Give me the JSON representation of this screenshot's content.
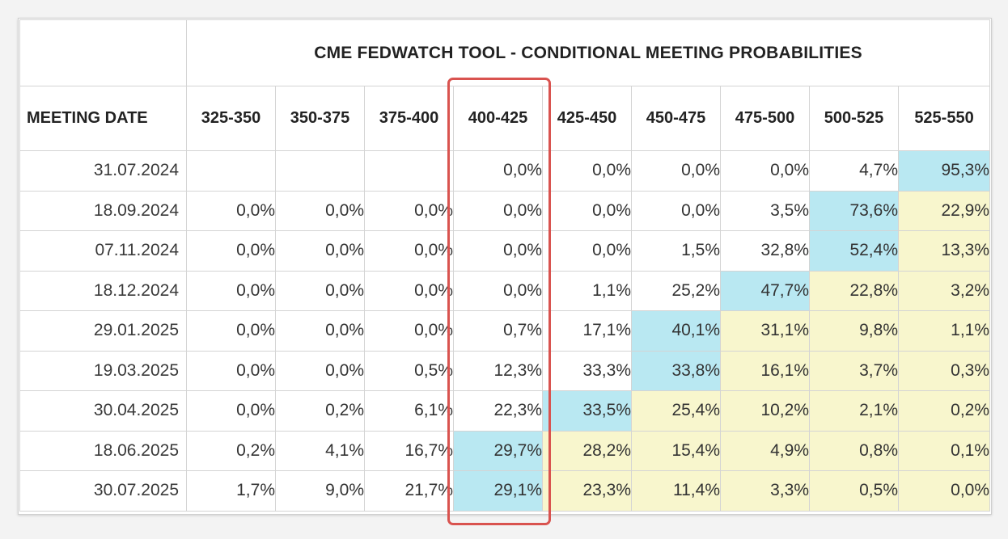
{
  "chart_data": {
    "type": "table",
    "title": "CME FEDWATCH TOOL - CONDITIONAL MEETING PROBABILITIES",
    "row_header_label": "MEETING DATE",
    "columns": [
      "325-350",
      "350-375",
      "375-400",
      "400-425",
      "425-450",
      "450-475",
      "475-500",
      "500-525",
      "525-550"
    ],
    "highlighted_column": "400-425",
    "colors": {
      "highest": "#b9e8f2",
      "secondary": "#f8f6cd",
      "highlight_border": "#d9534f"
    },
    "rows": [
      {
        "date": "31.07.2024",
        "values": [
          "",
          "",
          "",
          "0,0%",
          "0,0%",
          "0,0%",
          "0,0%",
          "4,7%",
          "95,3%"
        ],
        "shade": [
          "",
          "",
          "",
          "",
          "",
          "",
          "",
          "",
          "hi"
        ]
      },
      {
        "date": "18.09.2024",
        "values": [
          "0,0%",
          "0,0%",
          "0,0%",
          "0,0%",
          "0,0%",
          "0,0%",
          "3,5%",
          "73,6%",
          "22,9%"
        ],
        "shade": [
          "",
          "",
          "",
          "",
          "",
          "",
          "",
          "hi",
          "mid"
        ]
      },
      {
        "date": "07.11.2024",
        "values": [
          "0,0%",
          "0,0%",
          "0,0%",
          "0,0%",
          "0,0%",
          "1,5%",
          "32,8%",
          "52,4%",
          "13,3%"
        ],
        "shade": [
          "",
          "",
          "",
          "",
          "",
          "",
          "",
          "hi",
          "mid"
        ]
      },
      {
        "date": "18.12.2024",
        "values": [
          "0,0%",
          "0,0%",
          "0,0%",
          "0,0%",
          "1,1%",
          "25,2%",
          "47,7%",
          "22,8%",
          "3,2%"
        ],
        "shade": [
          "",
          "",
          "",
          "",
          "",
          "",
          "hi",
          "mid",
          "mid"
        ]
      },
      {
        "date": "29.01.2025",
        "values": [
          "0,0%",
          "0,0%",
          "0,0%",
          "0,7%",
          "17,1%",
          "40,1%",
          "31,1%",
          "9,8%",
          "1,1%"
        ],
        "shade": [
          "",
          "",
          "",
          "",
          "",
          "hi",
          "mid",
          "mid",
          "mid"
        ]
      },
      {
        "date": "19.03.2025",
        "values": [
          "0,0%",
          "0,0%",
          "0,5%",
          "12,3%",
          "33,3%",
          "33,8%",
          "16,1%",
          "3,7%",
          "0,3%"
        ],
        "shade": [
          "",
          "",
          "",
          "",
          "",
          "hi",
          "mid",
          "mid",
          "mid"
        ]
      },
      {
        "date": "30.04.2025",
        "values": [
          "0,0%",
          "0,2%",
          "6,1%",
          "22,3%",
          "33,5%",
          "25,4%",
          "10,2%",
          "2,1%",
          "0,2%"
        ],
        "shade": [
          "",
          "",
          "",
          "",
          "hi",
          "mid",
          "mid",
          "mid",
          "mid"
        ]
      },
      {
        "date": "18.06.2025",
        "values": [
          "0,2%",
          "4,1%",
          "16,7%",
          "29,7%",
          "28,2%",
          "15,4%",
          "4,9%",
          "0,8%",
          "0,1%"
        ],
        "shade": [
          "",
          "",
          "",
          "hi",
          "mid",
          "mid",
          "mid",
          "mid",
          "mid"
        ]
      },
      {
        "date": "30.07.2025",
        "values": [
          "1,7%",
          "9,0%",
          "21,7%",
          "29,1%",
          "23,3%",
          "11,4%",
          "3,3%",
          "0,5%",
          "0,0%"
        ],
        "shade": [
          "",
          "",
          "",
          "hi",
          "mid",
          "mid",
          "mid",
          "mid",
          "mid"
        ]
      }
    ]
  }
}
